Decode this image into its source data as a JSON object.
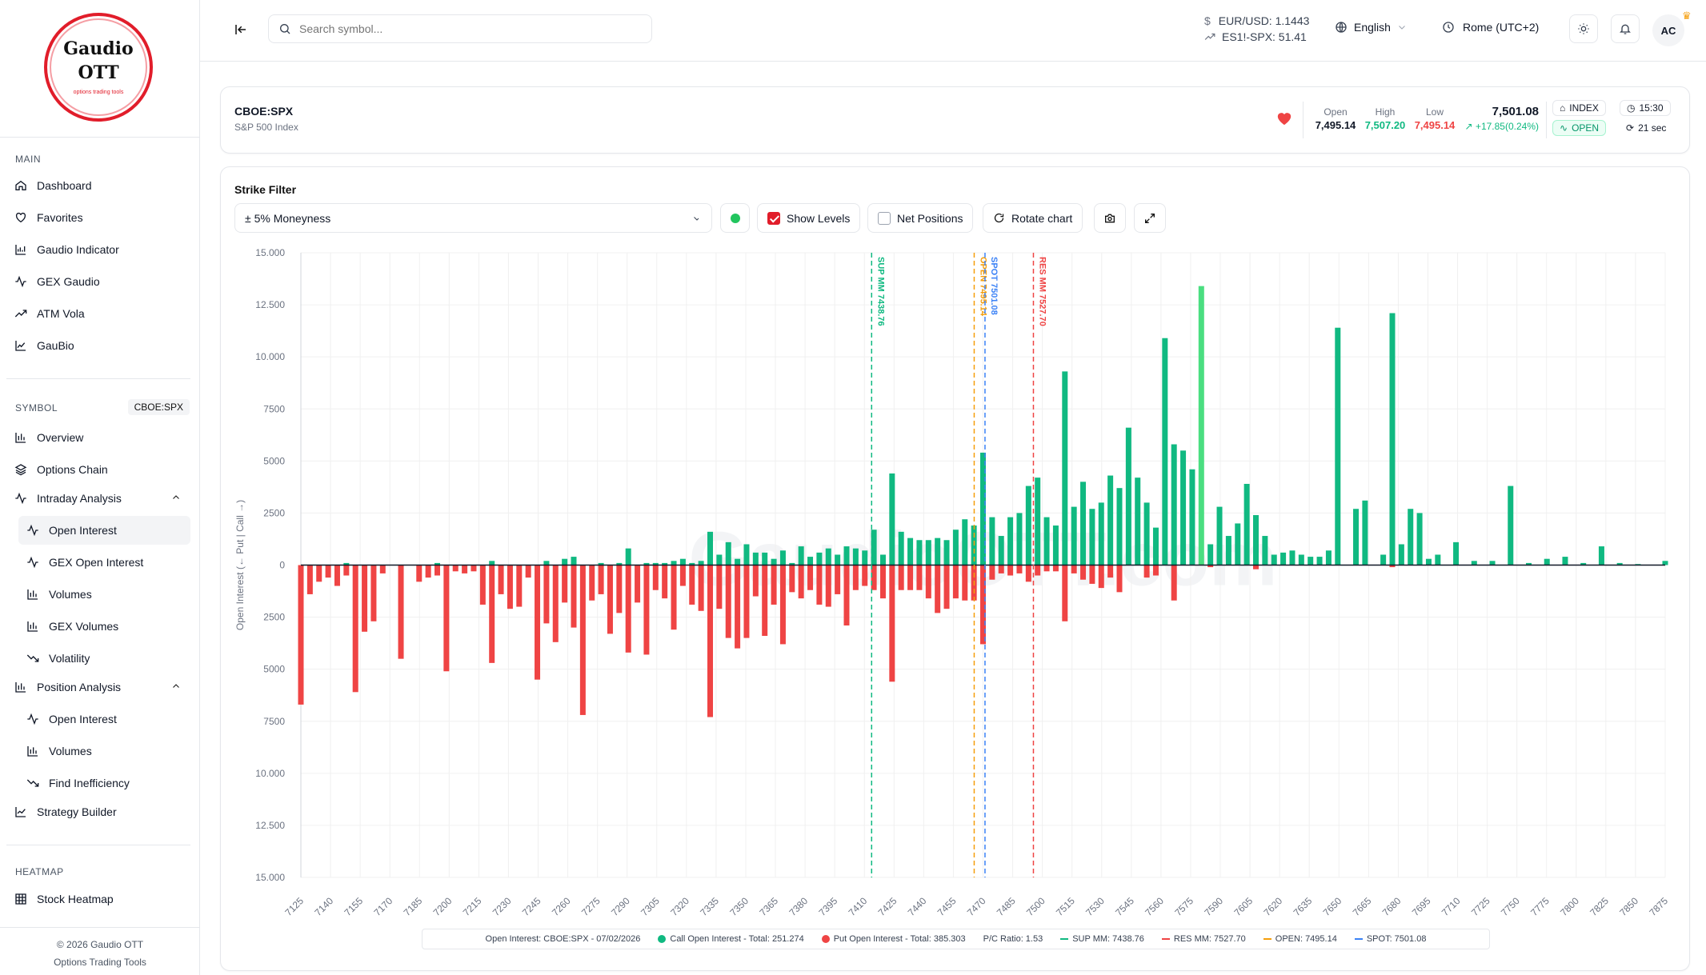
{
  "brand": {
    "line1": "Gaudio",
    "line2": "OTT",
    "tagline": "options trading tools"
  },
  "sidebar": {
    "main_title": "MAIN",
    "main_items": [
      {
        "label": "Dashboard",
        "icon": "home-icon"
      },
      {
        "label": "Favorites",
        "icon": "heart-icon"
      },
      {
        "label": "Gaudio Indicator",
        "icon": "chart-icon"
      },
      {
        "label": "GEX Gaudio",
        "icon": "activity-icon"
      },
      {
        "label": "ATM Vola",
        "icon": "trend-icon"
      },
      {
        "label": "GauBio",
        "icon": "area-chart-icon"
      }
    ],
    "symbol_title": "SYMBOL",
    "symbol_badge": "CBOE:SPX",
    "symbol_items": [
      {
        "label": "Overview"
      },
      {
        "label": "Options Chain"
      },
      {
        "label": "Intraday Analysis"
      },
      {
        "label": "Open Interest"
      },
      {
        "label": "GEX Open Interest"
      },
      {
        "label": "Volumes"
      },
      {
        "label": "GEX Volumes"
      },
      {
        "label": "Volatility"
      },
      {
        "label": "Position Analysis"
      },
      {
        "label": "Open Interest"
      },
      {
        "label": "Volumes"
      },
      {
        "label": "Find Inefficiency"
      },
      {
        "label": "Strategy Builder"
      }
    ],
    "heatmap_title": "HEATMAP",
    "heatmap_items": [
      {
        "label": "Stock Heatmap"
      }
    ],
    "footer1": "© 2026 Gaudio OTT",
    "footer2": "Options Trading Tools"
  },
  "topbar": {
    "search_placeholder": "Search symbol...",
    "eurusd": "EUR/USD: 1.1443",
    "es_spx": "ES1!-SPX: 51.41",
    "language": "English",
    "timezone": "Rome (UTC+2)",
    "avatar": "AC"
  },
  "symbol": {
    "name": "CBOE:SPX",
    "desc": "S&P 500 Index",
    "open_label": "Open",
    "open": "7,495.14",
    "high_label": "High",
    "high": "7,507.20",
    "low_label": "Low",
    "low": "7,495.14",
    "last": "7,501.08",
    "change": "+17.85(0.24%)",
    "type": "INDEX",
    "status": "OPEN",
    "time": "15:30",
    "refresh": "21 sec"
  },
  "controls": {
    "strike_filter_label": "Strike Filter",
    "strike_filter_value": "± 5% Moneyness",
    "show_levels": "Show Levels",
    "net_positions": "Net Positions",
    "rotate": "Rotate chart"
  },
  "colors": {
    "call": "#10b981",
    "put": "#ef4444",
    "sup": "#10b981",
    "res": "#ef4444",
    "open": "#f59e0b",
    "spot": "#3b82f6"
  },
  "legend": {
    "title": "Open Interest: CBOE:SPX - 07/02/2026",
    "call": "Call Open Interest - Total: 251.274",
    "put": "Put Open Interest - Total: 385.303",
    "pc": "P/C Ratio: 1.53",
    "sup": "SUP MM: 7438.76",
    "res": "RES MM: 7527.70",
    "open": "OPEN: 7495.14",
    "spot": "SPOT: 7501.08"
  },
  "chart_data": {
    "type": "bar",
    "ylabel": "Open Interest (← Put | Call →)",
    "y_ticks": [
      "15.000",
      "12.500",
      "10.000",
      "7500",
      "5000",
      "2500",
      "0",
      "2500",
      "5000",
      "7500",
      "10.000",
      "12.500",
      "15.000"
    ],
    "ylim": [
      -15000,
      15000
    ],
    "x_ticks": [
      "7125",
      "7140",
      "7155",
      "7170",
      "7185",
      "7200",
      "7215",
      "7230",
      "7245",
      "7260",
      "7275",
      "7290",
      "7305",
      "7320",
      "7335",
      "7350",
      "7365",
      "7380",
      "7395",
      "7410",
      "7425",
      "7440",
      "7455",
      "7470",
      "7485",
      "7500",
      "7515",
      "7530",
      "7545",
      "7560",
      "7575",
      "7590",
      "7605",
      "7620",
      "7635",
      "7650",
      "7665",
      "7680",
      "7695",
      "7710",
      "7725",
      "7750",
      "7775",
      "7800",
      "7825",
      "7850",
      "7875"
    ],
    "strike_range": [
      7125,
      7875
    ],
    "call_series": {
      "name": "Call Open Interest",
      "strikes": [
        7150,
        7200,
        7230,
        7260,
        7270,
        7275,
        7290,
        7300,
        7305,
        7315,
        7320,
        7325,
        7330,
        7335,
        7340,
        7345,
        7350,
        7355,
        7360,
        7365,
        7370,
        7375,
        7380,
        7385,
        7390,
        7395,
        7400,
        7405,
        7410,
        7415,
        7420,
        7425,
        7430,
        7435,
        7440,
        7445,
        7450,
        7455,
        7460,
        7465,
        7470,
        7475,
        7480,
        7485,
        7490,
        7495,
        7500,
        7505,
        7510,
        7515,
        7520,
        7525,
        7530,
        7535,
        7540,
        7545,
        7550,
        7555,
        7560,
        7565,
        7570,
        7575,
        7580,
        7585,
        7590,
        7595,
        7600,
        7605,
        7610,
        7615,
        7620,
        7625,
        7630,
        7635,
        7640,
        7645,
        7650,
        7655,
        7660,
        7665,
        7670,
        7675,
        7680,
        7685,
        7690,
        7695,
        7705,
        7710,
        7720,
        7725,
        7730,
        7735,
        7740,
        7745,
        7750,
        7760,
        7770,
        7780,
        7790,
        7800,
        7810,
        7820,
        7830,
        7840,
        7850,
        7860,
        7875
      ],
      "values": [
        100,
        100,
        200,
        200,
        300,
        400,
        100,
        100,
        800,
        100,
        100,
        100,
        200,
        300,
        100,
        200,
        1600,
        500,
        1100,
        300,
        1000,
        600,
        600,
        300,
        700,
        100,
        900,
        400,
        600,
        800,
        500,
        900,
        800,
        700,
        1700,
        500,
        4400,
        1600,
        1300,
        1200,
        1200,
        1300,
        1200,
        1700,
        2200,
        1900,
        5400,
        2300,
        1400,
        2300,
        2500,
        3800,
        4200,
        2300,
        1900,
        9300,
        2800,
        4000,
        2700,
        3000,
        4300,
        3700,
        6600,
        4200,
        3000,
        1800,
        10900,
        5800,
        5500,
        4600,
        13400,
        1000,
        2800,
        1400,
        2000,
        3900,
        2400,
        1400,
        500,
        600,
        700,
        500,
        400,
        400,
        700,
        11400,
        2700,
        3100,
        500,
        12100,
        1000,
        2700,
        2500,
        300,
        500,
        1100,
        200,
        200,
        3800,
        100,
        300,
        400,
        100,
        900,
        100,
        50,
        200
      ]
    },
    "put_series": {
      "name": "Put Open Interest",
      "strikes": [
        7125,
        7130,
        7135,
        7140,
        7145,
        7150,
        7155,
        7160,
        7165,
        7170,
        7180,
        7190,
        7195,
        7200,
        7205,
        7210,
        7215,
        7220,
        7225,
        7230,
        7235,
        7240,
        7245,
        7250,
        7255,
        7260,
        7265,
        7270,
        7275,
        7280,
        7285,
        7290,
        7295,
        7300,
        7305,
        7310,
        7315,
        7320,
        7325,
        7330,
        7335,
        7340,
        7345,
        7350,
        7355,
        7360,
        7365,
        7370,
        7375,
        7380,
        7385,
        7390,
        7395,
        7400,
        7405,
        7410,
        7415,
        7420,
        7425,
        7430,
        7435,
        7440,
        7445,
        7450,
        7455,
        7460,
        7465,
        7470,
        7475,
        7480,
        7485,
        7490,
        7495,
        7500,
        7505,
        7510,
        7515,
        7520,
        7525,
        7530,
        7535,
        7540,
        7545,
        7550,
        7555,
        7560,
        7565,
        7570,
        7575,
        7590,
        7595,
        7605,
        7625,
        7650,
        7725
      ],
      "values": [
        6700,
        1400,
        800,
        600,
        1000,
        500,
        6100,
        3200,
        2700,
        400,
        4500,
        800,
        600,
        500,
        5100,
        300,
        400,
        300,
        1900,
        4700,
        1400,
        2100,
        2000,
        600,
        5500,
        2800,
        3700,
        1800,
        3000,
        7200,
        1700,
        1400,
        3300,
        2300,
        4200,
        1800,
        4300,
        1200,
        1600,
        3100,
        1000,
        1900,
        2200,
        7300,
        2100,
        3500,
        4000,
        3500,
        1500,
        3400,
        1900,
        3800,
        1300,
        1600,
        1200,
        1900,
        2000,
        1400,
        2900,
        1200,
        1000,
        1200,
        1600,
        5600,
        1200,
        1200,
        1200,
        1600,
        2300,
        2100,
        1600,
        1700,
        1700,
        3800,
        700,
        400,
        500,
        400,
        800,
        500,
        300,
        300,
        2700,
        400,
        700,
        900,
        1100,
        600,
        1300,
        600,
        500,
        1700,
        100,
        200,
        100
      ]
    },
    "levels": [
      {
        "label": "SUP MM 7438.76",
        "value": 7438.76
      },
      {
        "label": "OPEN 7495.14",
        "value": 7495.14
      },
      {
        "label": "SPOT 7501.08",
        "value": 7501.08
      },
      {
        "label": "RES MM 7527.70",
        "value": 7527.7
      }
    ],
    "watermark": "GaudioOTT.com"
  }
}
